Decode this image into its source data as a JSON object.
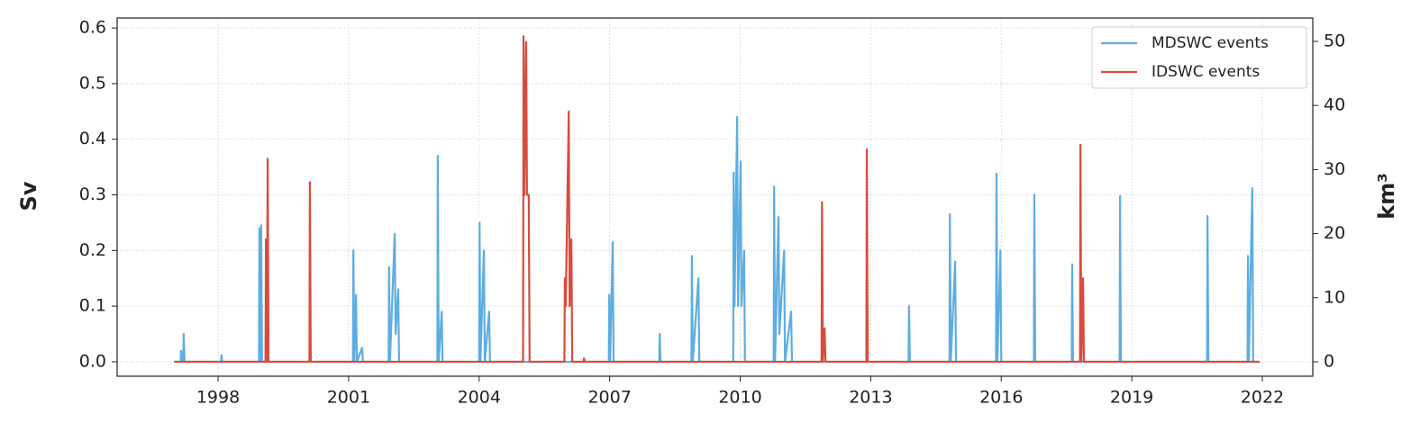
{
  "chart_data": {
    "type": "line",
    "ylabel": "Sv",
    "y2label": "km³",
    "xlim": [
      1995.68,
      2023.16
    ],
    "xticks": [
      1998,
      2001,
      2004,
      2007,
      2010,
      2013,
      2016,
      2019,
      2022
    ],
    "ylim": [
      -0.026,
      0.618
    ],
    "yticks": [
      {
        "value": 0,
        "label": "0.0"
      },
      0.1,
      0.2,
      0.3,
      0.4,
      0.5,
      0.6
    ],
    "y2lim": [
      -2.25,
      53.65
    ],
    "y2ticks": [
      0,
      10,
      20,
      30,
      40,
      50
    ],
    "grid": true,
    "legend": "upper right",
    "series": [
      {
        "name": "MDSWC events",
        "color": "#5dade2",
        "x": [
          1996.99,
          1997.14,
          1997.15,
          1997.17,
          1997.2,
          1997.21,
          1997.23,
          1998.07,
          1998.08,
          1998.09,
          1998.94,
          1998.95,
          1998.97,
          1998.99,
          1999.01,
          2001.1,
          2001.11,
          2001.13,
          2001.17,
          2001.19,
          2001.31,
          2001.33,
          2001.92,
          2001.93,
          2001.95,
          2002.06,
          2002.08,
          2002.14,
          2002.16,
          2003.04,
          2003.05,
          2003.07,
          2003.14,
          2003.16,
          2004.0,
          2004.01,
          2004.03,
          2004.11,
          2004.13,
          2004.23,
          2004.25,
          2006.98,
          2006.99,
          2007.01,
          2007.07,
          2007.09,
          2008.14,
          2008.15,
          2008.17,
          2008.88,
          2008.89,
          2008.91,
          2009.04,
          2009.06,
          2009.84,
          2009.85,
          2009.87,
          2009.93,
          2009.95,
          2010.01,
          2010.03,
          2010.09,
          2010.11,
          2010.77,
          2010.78,
          2010.8,
          2010.88,
          2010.9,
          2011.01,
          2011.03,
          2011.17,
          2011.19,
          2013.87,
          2013.88,
          2013.9,
          2014.81,
          2014.82,
          2014.84,
          2014.94,
          2014.96,
          2015.88,
          2015.89,
          2015.91,
          2015.98,
          2016.0,
          2016.75,
          2016.76,
          2016.78,
          2017.62,
          2017.63,
          2017.65,
          2018.72,
          2018.73,
          2018.75,
          2020.73,
          2020.74,
          2020.76,
          2021.66,
          2021.67,
          2021.69,
          2021.77,
          2021.79,
          2021.94
        ],
        "values": [
          0,
          0,
          0.02,
          0,
          0,
          0.05,
          0,
          0,
          0.012,
          0,
          0,
          0.24,
          0,
          0.245,
          0,
          0,
          0.2,
          0,
          0.12,
          0,
          0.025,
          0,
          0,
          0.17,
          0,
          0.23,
          0.05,
          0.13,
          0,
          0,
          0.37,
          0,
          0.09,
          0,
          0,
          0.25,
          0,
          0.2,
          0,
          0.09,
          0,
          0,
          0.12,
          0,
          0.215,
          0,
          0,
          0.05,
          0,
          0,
          0.19,
          0,
          0.15,
          0,
          0,
          0.34,
          0.1,
          0.44,
          0.1,
          0.36,
          0.1,
          0.2,
          0,
          0,
          0.315,
          0,
          0.26,
          0.05,
          0.2,
          0,
          0.09,
          0,
          0,
          0.1,
          0,
          0,
          0.265,
          0,
          0.18,
          0,
          0,
          0.338,
          0,
          0.2,
          0,
          0,
          0.3,
          0,
          0,
          0.175,
          0,
          0,
          0.298,
          0,
          0,
          0.262,
          0,
          0,
          0.19,
          0,
          0.312,
          0,
          0
        ]
      },
      {
        "name": "IDSWC events",
        "color": "#d94c3d",
        "x": [
          1996.99,
          1999.09,
          1999.1,
          1999.12,
          1999.14,
          1999.16,
          2000.1,
          2000.11,
          2000.13,
          2005.01,
          2005.02,
          2005.04,
          2005.08,
          2005.1,
          2005.14,
          2005.16,
          2005.96,
          2005.97,
          2005.99,
          2006.06,
          2006.08,
          2006.12,
          2006.14,
          2006.4,
          2006.41,
          2006.43,
          2011.87,
          2011.88,
          2011.9,
          2011.94,
          2011.96,
          2012.9,
          2012.91,
          2012.93,
          2017.81,
          2017.82,
          2017.84,
          2017.88,
          2017.9,
          2021.94
        ],
        "values": [
          0,
          0,
          0.22,
          0,
          0.365,
          0,
          0,
          0.323,
          0,
          0,
          0.585,
          0.3,
          0.575,
          0.3,
          0.3,
          0,
          0,
          0.15,
          0.1,
          0.45,
          0.1,
          0.22,
          0,
          0,
          0.006,
          0,
          0,
          0.287,
          0,
          0.06,
          0,
          0,
          0.382,
          0,
          0,
          0.39,
          0,
          0.15,
          0,
          0
        ]
      }
    ]
  }
}
